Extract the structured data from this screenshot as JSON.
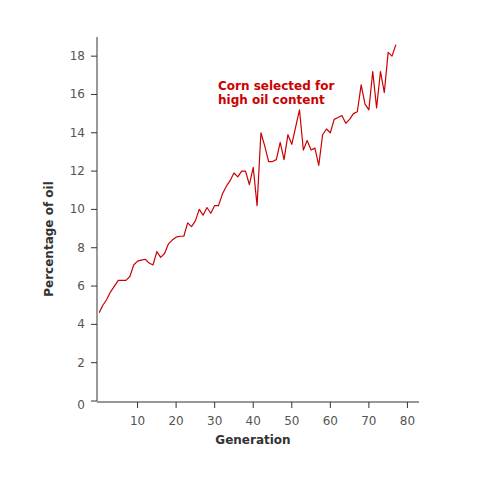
{
  "chart_data": {
    "type": "line",
    "x_label": "Generation",
    "y_label": "Percentage of oil",
    "annotations": [
      "Corn selected for",
      "high oil content"
    ],
    "x": [
      0,
      1,
      2,
      3,
      4,
      5,
      6,
      7,
      8,
      9,
      10,
      11,
      12,
      13,
      14,
      15,
      16,
      17,
      18,
      19,
      20,
      21,
      22,
      23,
      24,
      25,
      26,
      27,
      28,
      29,
      30,
      31,
      32,
      33,
      34,
      35,
      36,
      37,
      38,
      39,
      40,
      41,
      42,
      43,
      44,
      45,
      46,
      47,
      48,
      49,
      50,
      51,
      52,
      53,
      54,
      55,
      56,
      57,
      58,
      59,
      60,
      61,
      62,
      63,
      64,
      65,
      66,
      67,
      68,
      69,
      70,
      71,
      72,
      73,
      74,
      75,
      76,
      77
    ],
    "values": [
      4.6,
      5.0,
      5.3,
      5.7,
      6.0,
      6.3,
      6.3,
      6.3,
      6.5,
      7.1,
      7.3,
      7.35,
      7.4,
      7.2,
      7.1,
      7.8,
      7.5,
      7.7,
      8.2,
      8.4,
      8.55,
      8.6,
      8.6,
      9.3,
      9.1,
      9.4,
      10.0,
      9.7,
      10.1,
      9.8,
      10.2,
      10.2,
      10.8,
      11.2,
      11.5,
      11.9,
      11.7,
      12.0,
      12.0,
      11.3,
      12.2,
      10.2,
      14.0,
      13.3,
      12.5,
      12.5,
      12.6,
      13.5,
      12.6,
      13.9,
      13.4,
      14.3,
      15.2,
      13.1,
      13.6,
      13.1,
      13.2,
      12.3,
      13.9,
      14.2,
      14.0,
      14.7,
      14.8,
      14.9,
      14.5,
      14.7,
      15.0,
      15.1,
      16.5,
      15.5,
      15.2,
      17.2,
      15.3,
      17.2,
      16.1,
      18.2,
      18.0,
      18.6
    ],
    "color": "#cc0000",
    "xlim": [
      0,
      83
    ],
    "ylim": [
      0,
      19
    ],
    "xticks": [
      10,
      20,
      30,
      40,
      50,
      60,
      70,
      80
    ],
    "yticks": [
      0,
      2,
      4,
      6,
      8,
      10,
      12,
      14,
      16,
      18
    ],
    "grid": false
  }
}
